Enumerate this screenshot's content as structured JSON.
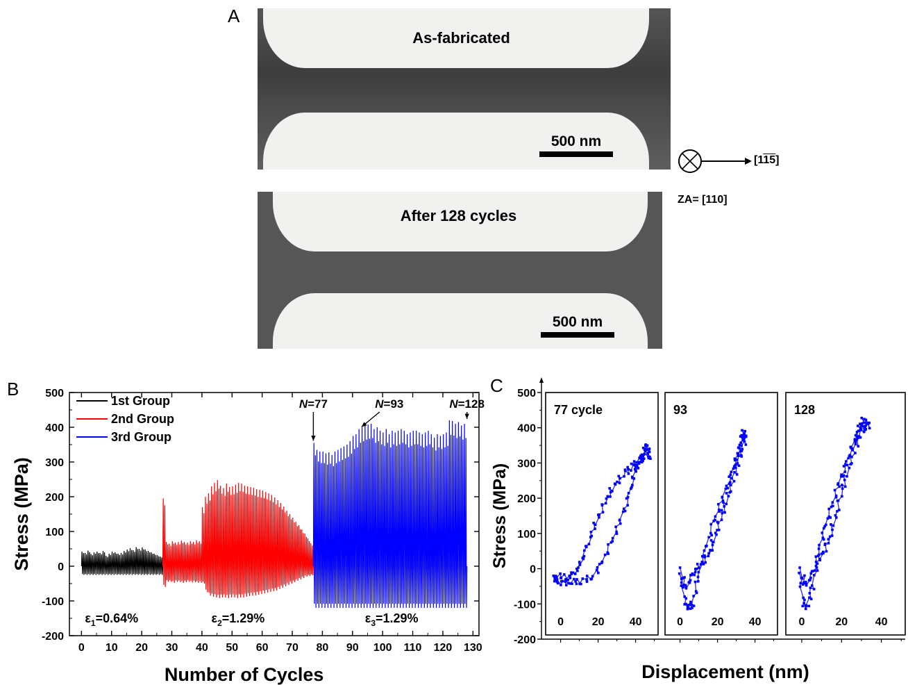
{
  "panel_a": {
    "letter": "A",
    "top_caption": "As-fabricated",
    "bottom_caption": "After 128 cycles",
    "scale_label": "500 nm",
    "direction_label": "[11̄5̄]",
    "zone_axis": "ZA= [110]"
  },
  "panel_b": {
    "letter": "B"
  },
  "panel_c": {
    "letter": "C"
  },
  "chart_data": [
    {
      "type": "line",
      "xlabel": "Number of Cycles",
      "ylabel": "Stress (MPa)",
      "xlim": [
        -4,
        132
      ],
      "ylim": [
        -200,
        500
      ],
      "xticks": [
        0,
        10,
        20,
        30,
        40,
        50,
        60,
        70,
        80,
        90,
        100,
        110,
        120,
        130
      ],
      "yticks": [
        -200,
        -100,
        0,
        100,
        200,
        300,
        400,
        500
      ],
      "series": [
        {
          "name": "1st  Group",
          "color": "#000000",
          "cycles": [
            0,
            27
          ],
          "peak_stress": [
            42,
            38,
            45,
            35,
            40,
            42,
            38,
            44,
            30,
            36,
            42,
            40,
            36,
            38,
            44,
            48,
            52,
            46,
            55,
            50,
            54,
            48,
            44,
            40,
            36,
            32,
            28
          ],
          "valley_stress": -25
        },
        {
          "name": "2nd  Group",
          "color": "#ff0000",
          "cycles": [
            27,
            77
          ],
          "peak_stress": [
            195,
            70,
            65,
            72,
            68,
            70,
            74,
            70,
            68,
            72,
            70,
            75,
            72,
            170,
            200,
            210,
            230,
            240,
            248,
            232,
            225,
            238,
            228,
            230,
            235,
            240,
            238,
            232,
            230,
            228,
            226,
            222,
            220,
            218,
            214,
            210,
            205,
            198,
            190,
            182,
            172,
            160,
            150,
            140,
            128,
            118,
            106,
            94,
            80,
            66
          ],
          "valley_stress": [
            -60,
            -45,
            -45,
            -48,
            -45,
            -46,
            -48,
            -46,
            -45,
            -47,
            -46,
            -48,
            -48,
            -50,
            -75,
            -85,
            -88,
            -90,
            -92,
            -90,
            -90,
            -92,
            -90,
            -90,
            -92,
            -90,
            -90,
            -88,
            -86,
            -85,
            -84,
            -82,
            -80,
            -78,
            -76,
            -74,
            -72,
            -70,
            -66,
            -62,
            -58,
            -54,
            -50,
            -46,
            -42,
            -38,
            -34,
            -30,
            -28,
            -26
          ]
        },
        {
          "name": "3rd  Group",
          "color": "#0000ff",
          "cycles": [
            77,
            128
          ],
          "peak_stress": [
            355,
            335,
            330,
            330,
            325,
            328,
            320,
            330,
            335,
            340,
            345,
            350,
            360,
            375,
            380,
            395,
            400,
            405,
            408,
            410,
            395,
            400,
            390,
            385,
            395,
            380,
            390,
            385,
            390,
            395,
            390,
            380,
            385,
            390,
            390,
            385,
            380,
            385,
            390,
            380,
            370,
            380,
            375,
            380,
            385,
            420,
            418,
            410,
            415,
            405,
            410
          ],
          "valley_stress": -120
        }
      ],
      "annotations": [
        {
          "text": "N=77",
          "cycle": 77,
          "stress": 355
        },
        {
          "text": "N=93",
          "cycle": 93,
          "stress": 395
        },
        {
          "text": "N=128",
          "cycle": 128,
          "stress": 418
        }
      ],
      "strain_labels": [
        {
          "text": "ε1=0.64%",
          "cycle": 10,
          "stress": -150
        },
        {
          "text": "ε2=1.29%",
          "cycle": 52,
          "stress": -150
        },
        {
          "text": "ε3=1.29%",
          "cycle": 103,
          "stress": -150
        }
      ],
      "legend": "top-left"
    },
    {
      "type": "scatter",
      "xlabel": "Displacement (nm)",
      "ylabel": "Stress (MPa)",
      "ylim": [
        -200,
        500
      ],
      "yticks": [
        -200,
        -100,
        0,
        100,
        200,
        300,
        400,
        500
      ],
      "xticks": [
        0,
        20,
        40
      ],
      "color": "#0000ff",
      "subplots": [
        {
          "label": "77 cycle",
          "xlim": [
            -8,
            52
          ],
          "loading": [
            [
              -3,
              -35
            ],
            [
              1,
              -40
            ],
            [
              6,
              -38
            ],
            [
              11,
              -35
            ],
            [
              17,
              -25
            ],
            [
              22,
              15
            ],
            [
              27,
              70
            ],
            [
              31,
              125
            ],
            [
              35,
              185
            ],
            [
              38,
              245
            ],
            [
              40,
              285
            ],
            [
              43,
              310
            ],
            [
              45,
              335
            ],
            [
              46,
              350
            ]
          ],
          "unloading": [
            [
              48,
              318
            ],
            [
              44,
              320
            ],
            [
              41,
              300
            ],
            [
              38,
              290
            ],
            [
              34,
              270
            ],
            [
              29,
              240
            ],
            [
              25,
              205
            ],
            [
              21,
              160
            ],
            [
              17,
              105
            ],
            [
              13,
              45
            ],
            [
              10,
              5
            ],
            [
              7,
              -15
            ],
            [
              3,
              -25
            ],
            [
              -3,
              -20
            ]
          ]
        },
        {
          "label": "93",
          "xlim": [
            -8,
            52
          ],
          "loading": [
            [
              0,
              -5
            ],
            [
              3,
              -105
            ],
            [
              5,
              -110
            ],
            [
              7,
              -95
            ],
            [
              10,
              -20
            ],
            [
              14,
              60
            ],
            [
              18,
              130
            ],
            [
              22,
              190
            ],
            [
              26,
              250
            ],
            [
              29,
              300
            ],
            [
              31,
              330
            ],
            [
              33,
              370
            ],
            [
              34,
              385
            ]
          ],
          "unloading": [
            [
              35,
              370
            ],
            [
              33,
              340
            ],
            [
              31,
              300
            ],
            [
              28,
              250
            ],
            [
              25,
              200
            ],
            [
              22,
              150
            ],
            [
              19,
              100
            ],
            [
              16,
              50
            ],
            [
              12,
              20
            ],
            [
              9,
              0
            ],
            [
              6,
              -25
            ],
            [
              3,
              -60
            ]
          ]
        },
        {
          "label": "128",
          "xlim": [
            -8,
            52
          ],
          "loading": [
            [
              -1,
              -5
            ],
            [
              1,
              -110
            ],
            [
              3,
              -100
            ],
            [
              6,
              -40
            ],
            [
              9,
              60
            ],
            [
              12,
              120
            ],
            [
              15,
              170
            ],
            [
              18,
              230
            ],
            [
              21,
              280
            ],
            [
              24,
              330
            ],
            [
              27,
              370
            ],
            [
              29,
              400
            ],
            [
              31,
              420
            ]
          ],
          "unloading": [
            [
              34,
              410
            ],
            [
              32,
              400
            ],
            [
              29,
              380
            ],
            [
              26,
              330
            ],
            [
              23,
              280
            ],
            [
              20,
              220
            ],
            [
              17,
              150
            ],
            [
              14,
              90
            ],
            [
              11,
              50
            ],
            [
              8,
              20
            ],
            [
              5,
              -20
            ],
            [
              2,
              -50
            ]
          ]
        }
      ]
    }
  ]
}
